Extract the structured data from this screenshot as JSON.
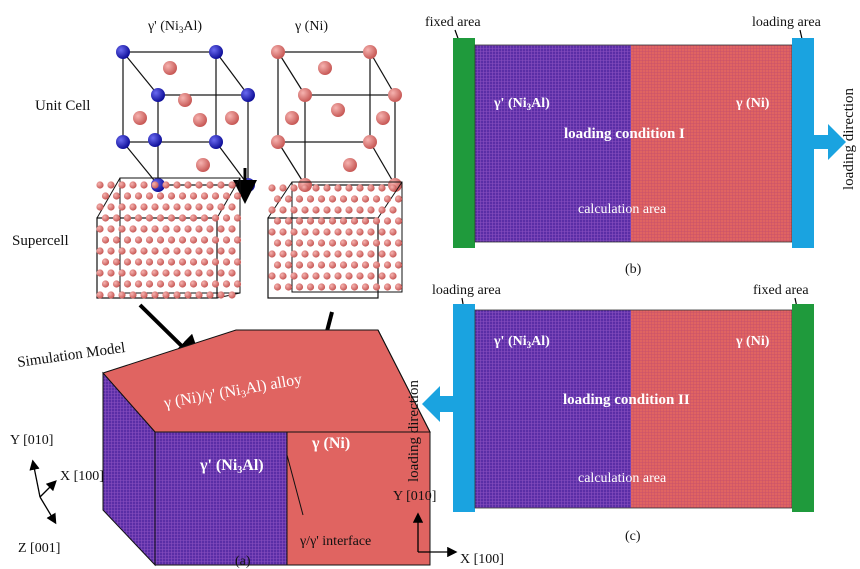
{
  "panel_a": {
    "gamma_prime_title": "γ' (Ni",
    "gamma_prime_title_sub": "3",
    "gamma_prime_title_end": "Al)",
    "gamma_title": "γ (Ni)",
    "unit_cell_label": "Unit Cell",
    "supercell_label": "Supercell",
    "simulation_model_label": "Simulation Model",
    "alloy_top_label_a": "γ (Ni)/γ' (Ni",
    "alloy_top_label_sub": "3",
    "alloy_top_label_b": "Al) alloy",
    "front_gp_label_a": "γ' (Ni",
    "front_gp_label_sub": "3",
    "front_gp_label_b": "Al)",
    "front_g_label": "γ (Ni)",
    "interface_label": "γ/γ' interface",
    "axis_y": "Y [010]",
    "axis_x": "X [100]",
    "axis_z": "Z [001]",
    "caption": "(a)"
  },
  "panel_b": {
    "fixed_label": "fixed area",
    "loading_label": "loading area",
    "gp_label_a": "γ' (Ni",
    "gp_label_sub": "3",
    "gp_label_b": "Al)",
    "g_label": "γ (Ni)",
    "condition": "loading condition I",
    "calc": "calculation area",
    "direction": "loading direction",
    "caption": "(b)"
  },
  "panel_c": {
    "loading_label": "loading area",
    "fixed_label": "fixed area",
    "gp_label_a": "γ' (Ni",
    "gp_label_sub": "3",
    "gp_label_b": "Al)",
    "g_label": "γ (Ni)",
    "condition": "loading condition II",
    "calc": "calculation area",
    "direction": "loading direction",
    "axis_y": "Y [010]",
    "axis_x": "X [100]",
    "caption": "(c)"
  },
  "colors": {
    "gamma_prime": "#5b2fa8",
    "gamma": "#e0625f",
    "fixed": "#1f9a3c",
    "loading": "#1aa3e0",
    "al_atom": "#1a1ab8",
    "ni_atom": "#e07b78"
  }
}
